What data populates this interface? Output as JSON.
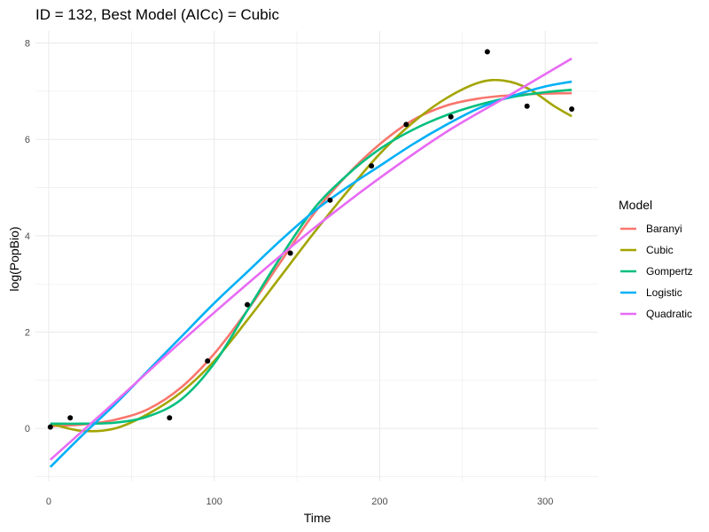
{
  "chart_data": {
    "type": "line",
    "title": "ID = 132, Best Model (AICc) = Cubic",
    "xlabel": "Time",
    "ylabel": "log(PopBio)",
    "xlim": [
      -8,
      332
    ],
    "ylim": [
      -1.1,
      8.25
    ],
    "x_ticks": [
      0,
      100,
      200,
      300
    ],
    "x_tick_labels": [
      "0",
      "100",
      "200",
      "300"
    ],
    "y_ticks": [
      0,
      2,
      4,
      6,
      8
    ],
    "y_tick_labels": [
      "0",
      "2",
      "4",
      "6",
      "8"
    ],
    "grid": true,
    "legend": {
      "title": "Model",
      "position": "right"
    },
    "points": {
      "x": [
        1,
        13,
        73,
        96,
        120,
        146,
        170,
        195,
        216,
        243,
        265,
        289,
        316
      ],
      "y": [
        0.03,
        0.22,
        0.22,
        1.4,
        2.57,
        3.64,
        4.74,
        5.45,
        6.31,
        6.47,
        7.82,
        6.69,
        6.63
      ]
    },
    "series": [
      {
        "name": "Baranyi",
        "color": "#F8766D",
        "x": [
          1,
          20,
          40,
          60,
          80,
          100,
          120,
          140,
          160,
          180,
          200,
          220,
          240,
          260,
          280,
          300,
          316
        ],
        "y": [
          0.05,
          0.08,
          0.18,
          0.4,
          0.85,
          1.55,
          2.45,
          3.45,
          4.45,
          5.25,
          5.9,
          6.4,
          6.7,
          6.85,
          6.92,
          6.95,
          6.96
        ]
      },
      {
        "name": "Cubic",
        "color": "#A3A500",
        "x": [
          1,
          20,
          40,
          60,
          80,
          100,
          120,
          140,
          160,
          180,
          200,
          220,
          240,
          260,
          275,
          290,
          305,
          316
        ],
        "y": [
          0.1,
          -0.05,
          0.0,
          0.3,
          0.75,
          1.4,
          2.25,
          3.15,
          4.05,
          4.9,
          5.7,
          6.35,
          6.85,
          7.18,
          7.22,
          7.05,
          6.7,
          6.48
        ]
      },
      {
        "name": "Gompertz",
        "color": "#00BF7D",
        "x": [
          1,
          20,
          40,
          60,
          80,
          100,
          120,
          140,
          160,
          180,
          200,
          220,
          240,
          260,
          280,
          300,
          316
        ],
        "y": [
          0.1,
          0.1,
          0.12,
          0.25,
          0.6,
          1.35,
          2.45,
          3.55,
          4.55,
          5.25,
          5.8,
          6.2,
          6.5,
          6.72,
          6.88,
          6.98,
          7.03
        ]
      },
      {
        "name": "Logistic",
        "color": "#00B0F6",
        "x": [
          1,
          20,
          40,
          60,
          80,
          100,
          120,
          140,
          160,
          180,
          200,
          220,
          240,
          260,
          280,
          300,
          316
        ],
        "y": [
          -0.8,
          -0.15,
          0.5,
          1.2,
          1.9,
          2.6,
          3.25,
          3.9,
          4.5,
          5.0,
          5.45,
          5.9,
          6.3,
          6.65,
          6.9,
          7.1,
          7.2
        ]
      },
      {
        "name": "Quadratic",
        "color": "#E76BF3",
        "x": [
          1,
          40,
          80,
          120,
          160,
          200,
          240,
          280,
          316
        ],
        "y": [
          -0.65,
          0.55,
          1.8,
          3.0,
          4.15,
          5.2,
          6.15,
          6.95,
          7.68
        ]
      }
    ]
  }
}
